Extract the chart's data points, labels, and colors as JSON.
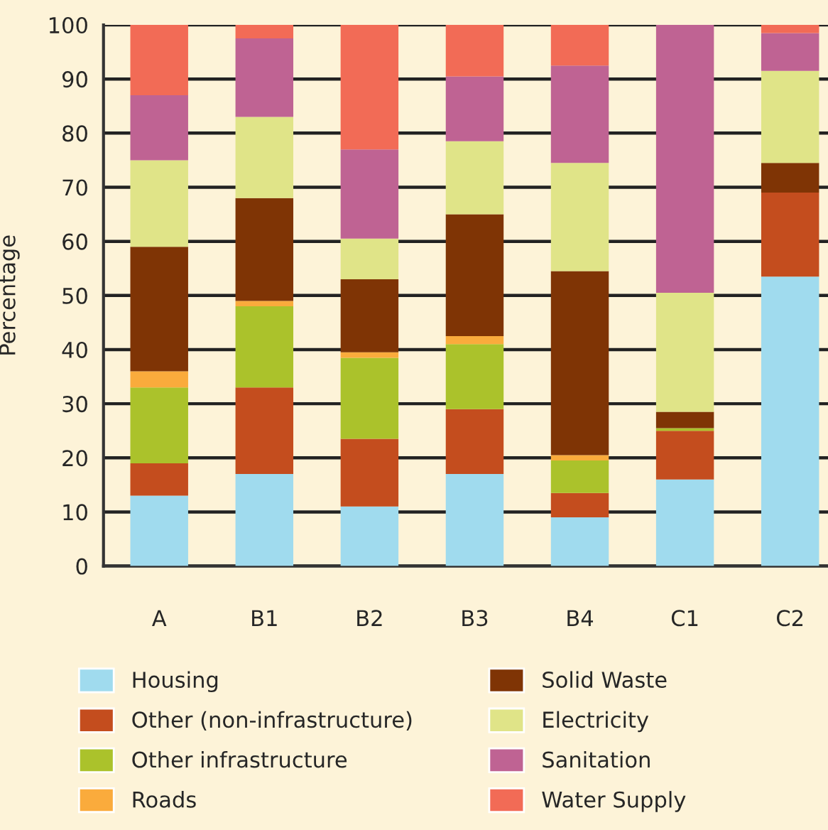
{
  "chart_data": {
    "type": "bar",
    "stacked": true,
    "ylabel": "Percentage",
    "categories": [
      "A",
      "B1",
      "B2",
      "B3",
      "B4",
      "C1",
      "C2"
    ],
    "ylim": [
      0,
      100
    ],
    "yticks": [
      0,
      10,
      20,
      30,
      40,
      50,
      60,
      70,
      80,
      90,
      100
    ],
    "grid": "y",
    "legend": "bottom",
    "series": [
      {
        "name": "Housing",
        "color": "#a0dbee",
        "values": [
          13,
          17,
          11,
          17,
          9,
          16,
          53.5
        ]
      },
      {
        "name": "Other (non-infrastructure)",
        "color": "#c44d1e",
        "values": [
          6,
          16,
          12.5,
          12,
          4.5,
          9,
          15.5
        ]
      },
      {
        "name": "Other infrastructure",
        "color": "#abc22b",
        "values": [
          14,
          15,
          15,
          12,
          6,
          0.5,
          0
        ]
      },
      {
        "name": "Roads",
        "color": "#faab3c",
        "values": [
          3,
          1,
          1,
          1.5,
          1,
          0,
          0
        ]
      },
      {
        "name": "Solid Waste",
        "color": "#7f3405",
        "values": [
          23,
          19,
          13.5,
          22.5,
          34,
          3,
          5.5
        ]
      },
      {
        "name": "Electricity",
        "color": "#e0e488",
        "values": [
          16,
          15,
          7.5,
          13.5,
          20,
          22,
          17
        ]
      },
      {
        "name": "Sanitation",
        "color": "#bf6393",
        "values": [
          12,
          14.5,
          16.5,
          12,
          18,
          49.5,
          7
        ]
      },
      {
        "name": "Water Supply",
        "color": "#f26b56",
        "values": [
          13,
          2.5,
          23,
          9.5,
          7.5,
          0,
          1.5
        ]
      }
    ]
  }
}
